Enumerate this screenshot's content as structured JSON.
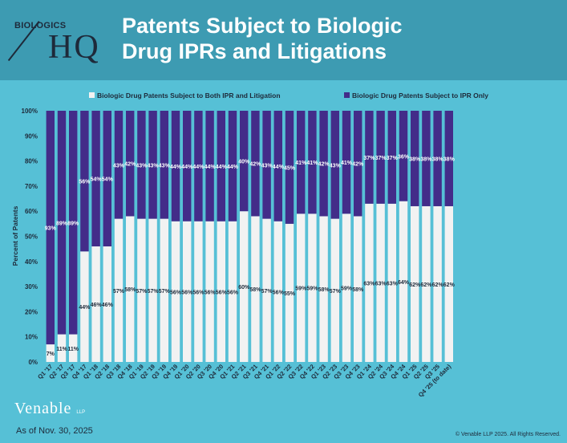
{
  "header": {
    "logo_top": "BIOLOGICS",
    "logo_main": "HQ",
    "title_line1": "Patents Subject to Biologic",
    "title_line2": "Drug IPRs and Litigations"
  },
  "footer": {
    "firm": "Venable",
    "firm_suffix": "LLP",
    "as_of": "As of Nov. 30, 2025",
    "copyright": "© Venable LLP 2025. All Rights Reserved."
  },
  "colors": {
    "background": "#56c0d6",
    "header": "#3d9bb2",
    "both": "#f2f2f2",
    "ipr_only": "#432c89",
    "text_dark": "#1e2a3a"
  },
  "chart_data": {
    "type": "bar",
    "stacked": true,
    "normalized": true,
    "ylabel": "Percent of Patents",
    "ylim": [
      0,
      100
    ],
    "yticks": [
      "0%",
      "10%",
      "20%",
      "30%",
      "40%",
      "50%",
      "60%",
      "70%",
      "80%",
      "90%",
      "100%"
    ],
    "grid": false,
    "legend_placement": "top-center",
    "categories": [
      "Q1 '17",
      "Q2 '17",
      "Q3 '17",
      "Q4 '17",
      "Q1 '18",
      "Q2 '18",
      "Q3 '18",
      "Q4 '18",
      "Q1 '19",
      "Q2 '19",
      "Q3 '19",
      "Q4 '19",
      "Q1 '20",
      "Q2 '20",
      "Q3 '20",
      "Q4 '20",
      "Q1 '21",
      "Q2 '21",
      "Q3 '21",
      "Q4 '21",
      "Q1 '22",
      "Q2 '22",
      "Q3 '22",
      "Q4 '22",
      "Q1 '23",
      "Q2 '23",
      "Q3 '23",
      "Q4 '23",
      "Q1 '24",
      "Q2 '24",
      "Q3 '24",
      "Q4 '24",
      "Q1 '25",
      "Q2 '25",
      "Q3 '25",
      "Q4 '25 (to date)"
    ],
    "series": [
      {
        "name": "Biologic Drug Patents Subject to Both IPR and Litigation",
        "values": [
          7,
          11,
          11,
          44,
          46,
          46,
          57,
          58,
          57,
          57,
          57,
          56,
          56,
          56,
          56,
          56,
          56,
          60,
          58,
          57,
          56,
          55,
          59,
          59,
          58,
          57,
          59,
          58,
          63,
          63,
          63,
          64,
          62,
          62,
          62,
          62
        ]
      },
      {
        "name": "Biologic Drug Patents Subject to IPR Only",
        "values": [
          93,
          89,
          89,
          56,
          54,
          54,
          43,
          42,
          43,
          43,
          43,
          44,
          44,
          44,
          44,
          44,
          44,
          40,
          42,
          43,
          44,
          45,
          41,
          41,
          42,
          43,
          41,
          42,
          37,
          37,
          37,
          36,
          38,
          38,
          38,
          38
        ]
      }
    ]
  }
}
